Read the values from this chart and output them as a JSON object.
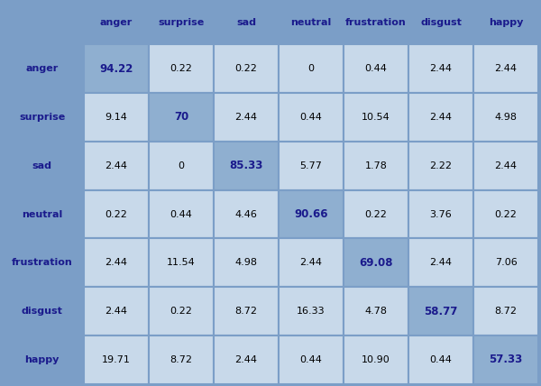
{
  "labels": [
    "anger",
    "surprise",
    "sad",
    "neutral",
    "frustration",
    "disgust",
    "happy"
  ],
  "matrix": [
    [
      "94.22",
      "0.22",
      "0.22",
      "0",
      "0.44",
      "2.44",
      "2.44"
    ],
    [
      "9.14",
      "70",
      "2.44",
      "0.44",
      "10.54",
      "2.44",
      "4.98"
    ],
    [
      "2.44",
      "0",
      "85.33",
      "5.77",
      "1.78",
      "2.22",
      "2.44"
    ],
    [
      "0.22",
      "0.44",
      "4.46",
      "90.66",
      "0.22",
      "3.76",
      "0.22"
    ],
    [
      "2.44",
      "11.54",
      "4.98",
      "2.44",
      "69.08",
      "2.44",
      "7.06"
    ],
    [
      "2.44",
      "0.22",
      "8.72",
      "16.33",
      "4.78",
      "58.77",
      "8.72"
    ],
    [
      "19.71",
      "8.72",
      "2.44",
      "0.44",
      "10.90",
      "0.44",
      "57.33"
    ]
  ],
  "bg_outer": "#7b9ec7",
  "bg_inner": "#c8d9ea",
  "diag_cell_color": "#8fafd0",
  "text_normal_color": "#000000",
  "text_diag_color": "#1a1a8c",
  "header_text_color": "#1a1a8c",
  "row_label_color": "#1a1a8c",
  "figsize": [
    6.0,
    4.28
  ],
  "dpi": 100
}
